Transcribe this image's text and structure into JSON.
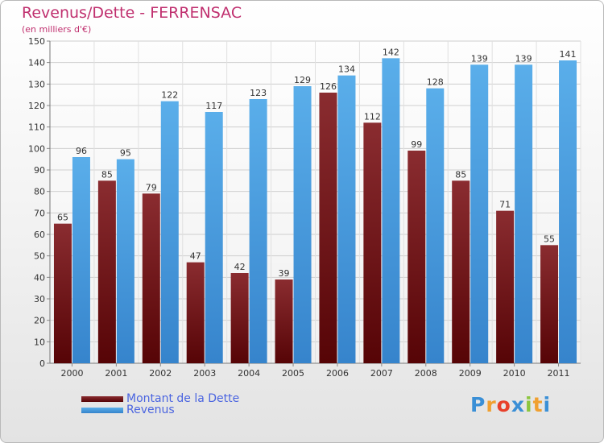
{
  "chart_data": {
    "type": "bar",
    "title": "Revenus/Dette - FERRENSAC",
    "subtitle": "(en milliers d'€)",
    "categories": [
      "2000",
      "2001",
      "2002",
      "2003",
      "2004",
      "2005",
      "2006",
      "2007",
      "2008",
      "2009",
      "2010",
      "2011"
    ],
    "series": [
      {
        "name": "Montant de la Dette",
        "color": "#6b1416",
        "values": [
          65,
          85,
          79,
          47,
          42,
          39,
          126,
          112,
          99,
          85,
          71,
          55
        ]
      },
      {
        "name": "Revenus",
        "color": "#4a9fe0",
        "values": [
          96,
          95,
          122,
          117,
          123,
          129,
          134,
          142,
          128,
          139,
          139,
          141
        ]
      }
    ],
    "ylim": [
      0,
      150
    ],
    "yticks": [
      0,
      10,
      20,
      30,
      40,
      50,
      60,
      70,
      80,
      90,
      100,
      110,
      120,
      130,
      140,
      150
    ],
    "grid": true,
    "legend_position": "bottom-left"
  },
  "logo": {
    "letters": [
      "P",
      "r",
      "o",
      "x",
      "i",
      "t",
      "i"
    ],
    "colors": [
      "#3a8fd6",
      "#f0a030",
      "#e8402a",
      "#3a8fd6",
      "#8cc63f",
      "#f0a030",
      "#3a8fd6"
    ]
  }
}
